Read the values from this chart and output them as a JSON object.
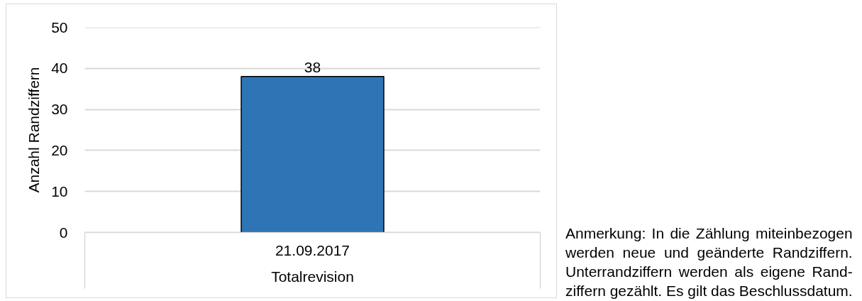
{
  "chart_data": {
    "type": "bar",
    "categories": [
      "21.09.2017"
    ],
    "values": [
      38
    ],
    "color": "#2e75b6",
    "xlabel": "Totalrevision",
    "ylabel": "Anzahl Randziffern",
    "ylim": [
      0,
      50
    ],
    "yticks": [
      0,
      10,
      20,
      30,
      40,
      50
    ],
    "grid": "y",
    "data_labels": true,
    "annotations": [
      "Anmerkung: In die Zählung miteinbezogen\nwerden neue und geänderte Randziffern.\nUnterrandziffern werden als eigene Rand-\nziffern gezählt. Es gilt das Beschlussdatum."
    ]
  }
}
